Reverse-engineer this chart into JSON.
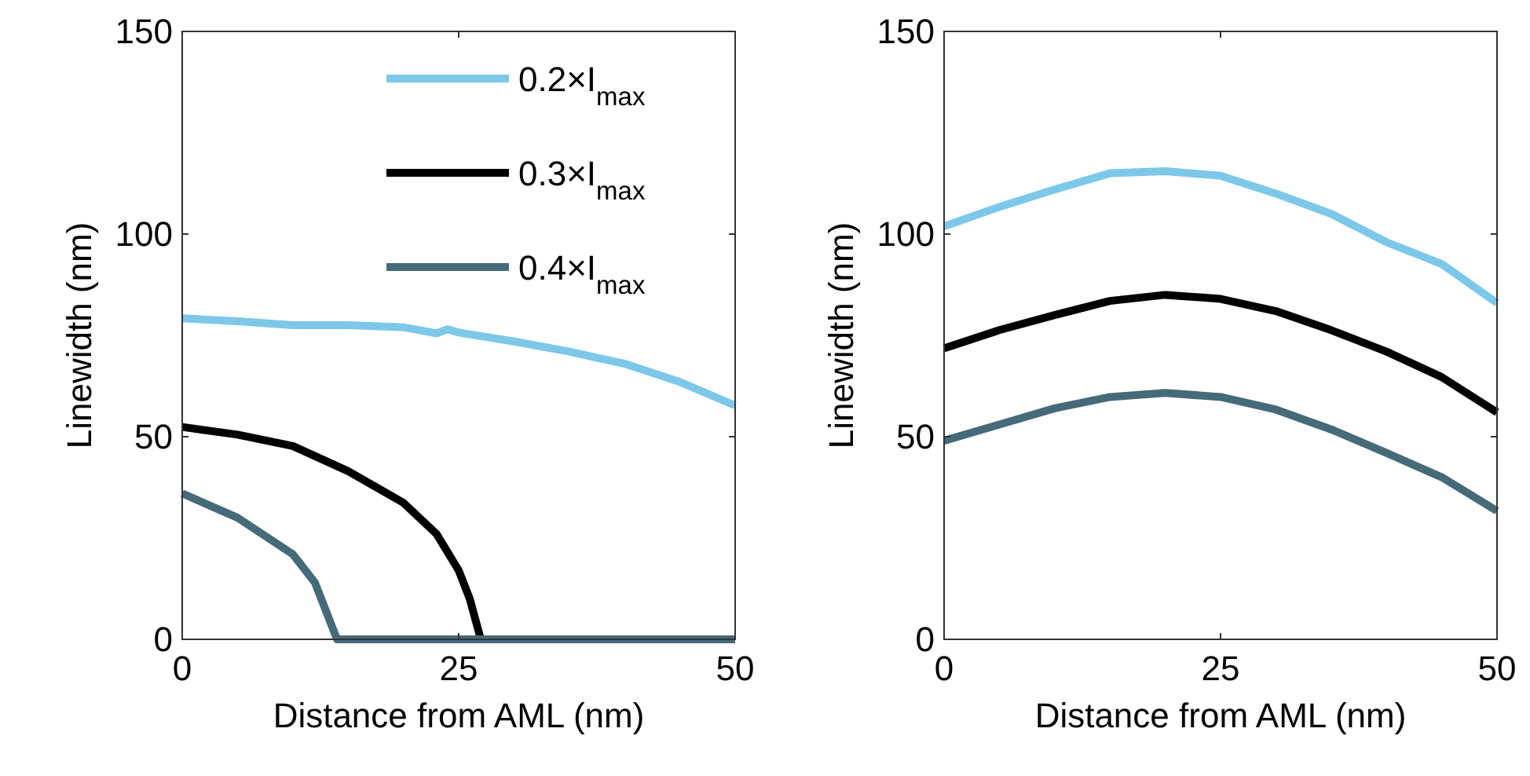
{
  "chart_data": [
    {
      "type": "line",
      "xlabel": "Distance from AML (nm)",
      "ylabel": "Linewidth (nm)",
      "xlim": [
        0,
        50
      ],
      "xticks": [
        0,
        25,
        50
      ],
      "ylim": [
        0,
        150
      ],
      "yticks": [
        0,
        50,
        100,
        150
      ],
      "grid": false,
      "legend": "top right",
      "marker": "none",
      "line_style": "solid",
      "series": [
        {
          "name": "0.2×I$_{max}$",
          "color": "#7dc8e8",
          "x": [
            0,
            5,
            10,
            15,
            20,
            23,
            24,
            25,
            30,
            35,
            40,
            45,
            50
          ],
          "values": [
            79.2,
            78.5,
            77.5,
            77.5,
            77,
            75.5,
            76.5,
            75.7,
            73.5,
            71,
            68,
            63.5,
            57.7
          ]
        },
        {
          "name": "0.3×I$_{max}$",
          "color": "#000000",
          "x": [
            0,
            5,
            10,
            15,
            20,
            23,
            25,
            26,
            27,
            30,
            40,
            50
          ],
          "values": [
            52.4,
            50.5,
            47.7,
            41.5,
            33.7,
            26,
            17,
            10,
            0,
            0,
            0,
            0
          ]
        },
        {
          "name": "0.4×I$_{max}$",
          "color": "#456a78",
          "x": [
            0,
            5,
            10,
            12,
            13,
            14,
            20,
            30,
            40,
            50
          ],
          "values": [
            36,
            30,
            21,
            14,
            7,
            0,
            0,
            0,
            0,
            0
          ]
        }
      ]
    },
    {
      "type": "line",
      "xlabel": "Distance from AML (nm)",
      "ylabel": "Linewidth (nm)",
      "xlim": [
        0,
        50
      ],
      "xticks": [
        0,
        25,
        50
      ],
      "ylim": [
        0,
        150
      ],
      "yticks": [
        0,
        50,
        100,
        150
      ],
      "grid": false,
      "legend": false,
      "marker": "none",
      "line_style": "solid",
      "series": [
        {
          "color": "#7dc8e8",
          "x": [
            0,
            5,
            10,
            15,
            20,
            25,
            30,
            35,
            40,
            45,
            50
          ],
          "values": [
            101.9,
            106.7,
            111,
            115,
            115.5,
            114.4,
            110,
            105,
            98,
            92.6,
            83
          ]
        },
        {
          "color": "#000000",
          "x": [
            0,
            5,
            10,
            15,
            20,
            25,
            30,
            35,
            40,
            45,
            50
          ],
          "values": [
            71.8,
            76.3,
            80,
            83.5,
            85,
            84,
            81,
            76.3,
            71,
            64.7,
            56
          ]
        },
        {
          "color": "#456a78",
          "x": [
            0,
            5,
            10,
            15,
            20,
            25,
            30,
            35,
            40,
            45,
            50
          ],
          "values": [
            49,
            53,
            57,
            59.8,
            60.8,
            59.8,
            56.7,
            51.8,
            46,
            40,
            31.7
          ]
        }
      ]
    }
  ]
}
